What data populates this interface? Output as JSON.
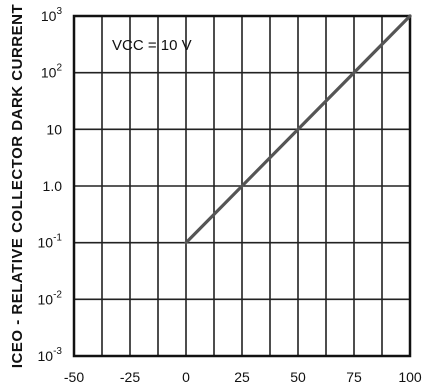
{
  "chart_data": {
    "type": "line",
    "title": "",
    "xlabel": "",
    "ylabel": "ICEO - RELATIVE COLLECTOR DARK CURRENT",
    "yscale": "log",
    "xlim": [
      -50,
      100
    ],
    "ylim": [
      0.001,
      1000
    ],
    "x_ticks": [
      "-50",
      "-25",
      "0",
      "25",
      "50",
      "75",
      "100"
    ],
    "y_ticks": [
      {
        "base": "10",
        "exp": "3"
      },
      {
        "base": "10",
        "exp": "2"
      },
      {
        "base": "10",
        "exp": ""
      },
      {
        "base": "1.0",
        "exp": ""
      },
      {
        "base": "10",
        "exp": "-1"
      },
      {
        "base": "10",
        "exp": "-2"
      },
      {
        "base": "10",
        "exp": "-3"
      }
    ],
    "grid": true,
    "annotation": "VCC = 10 V",
    "series": [
      {
        "x": [
          0,
          100
        ],
        "y": [
          0.1,
          1000
        ]
      }
    ]
  },
  "colors": {
    "axis": "#111111",
    "grid": "#222222",
    "line": "#555555"
  }
}
